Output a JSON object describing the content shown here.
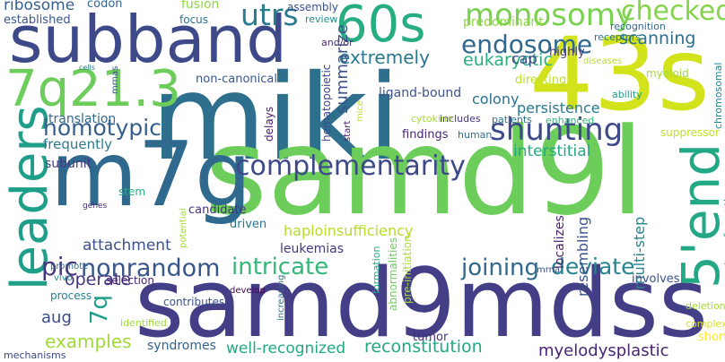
{
  "words": [
    {
      "text": "miki",
      "color": "#2e6f8e",
      "vertical": false
    },
    {
      "text": "samd9l",
      "color": "#6ccd5a",
      "vertical": false
    },
    {
      "text": "samd9mdss",
      "color": "#433e85",
      "vertical": false
    },
    {
      "text": "43s",
      "color": "#d2e21b",
      "vertical": false
    },
    {
      "text": "subband",
      "color": "#3e4989",
      "vertical": false
    },
    {
      "text": "m7g",
      "color": "#30698e",
      "vertical": false
    },
    {
      "text": "7q21.3",
      "color": "#6ccd5a",
      "vertical": false
    },
    {
      "text": "60s",
      "color": "#26ad81",
      "vertical": false
    },
    {
      "text": "leaders",
      "color": "#1f9e89",
      "vertical": true
    },
    {
      "text": "5'end",
      "color": "#22a884",
      "vertical": true
    },
    {
      "text": "complementarity",
      "color": "#3e4989",
      "vertical": false
    },
    {
      "text": "shunting",
      "color": "#3e4989",
      "vertical": false
    },
    {
      "text": "monosomy",
      "color": "#7ad151",
      "vertical": false
    },
    {
      "text": "endosome",
      "color": "#31688e",
      "vertical": false
    },
    {
      "text": "checked",
      "color": "#84d44b",
      "vertical": false
    },
    {
      "text": "homotypic",
      "color": "#355f8d",
      "vertical": false
    },
    {
      "text": "nonrandom",
      "color": "#39568c",
      "vertical": false
    },
    {
      "text": "pic",
      "color": "#46337e",
      "vertical": false
    },
    {
      "text": "utrs",
      "color": "#297b8e",
      "vertical": false
    },
    {
      "text": "intricate",
      "color": "#35b779",
      "vertical": false
    },
    {
      "text": "deviate",
      "color": "#25848e",
      "vertical": false
    },
    {
      "text": "joining",
      "color": "#31688e",
      "vertical": false
    },
    {
      "text": "eukaryotic",
      "color": "#29af7f",
      "vertical": false
    },
    {
      "text": "extremely",
      "color": "#2a788e",
      "vertical": false
    },
    {
      "text": "scanning",
      "color": "#2d708e",
      "vertical": false
    },
    {
      "text": "cap",
      "color": "#3e4989",
      "vertical": false
    },
    {
      "text": "aug",
      "color": "#3e4989",
      "vertical": false
    },
    {
      "text": "7q",
      "color": "#1f9e89",
      "vertical": true
    },
    {
      "text": "examples",
      "color": "#9fda3a",
      "vertical": false
    },
    {
      "text": "operate",
      "color": "#46337e",
      "vertical": false
    },
    {
      "text": "attachment",
      "color": "#3b528b",
      "vertical": false
    },
    {
      "text": "well-recognized",
      "color": "#22a884",
      "vertical": false
    },
    {
      "text": "reconstitution",
      "color": "#22a884",
      "vertical": false
    },
    {
      "text": "myelodysplastic",
      "color": "#482475",
      "vertical": false
    },
    {
      "text": "resembling",
      "color": "#3b528b",
      "vertical": true
    },
    {
      "text": "multi-step",
      "color": "#25848e",
      "vertical": true
    },
    {
      "text": "summarize",
      "color": "#3b528b",
      "vertical": true
    },
    {
      "text": "interstitial",
      "color": "#22a884",
      "vertical": false
    },
    {
      "text": "persistence",
      "color": "#2a788e",
      "vertical": false
    },
    {
      "text": "colony",
      "color": "#2d708e",
      "vertical": false
    },
    {
      "text": "ligand-bound",
      "color": "#3b528b",
      "vertical": false
    },
    {
      "text": "non-canonical",
      "color": "#39568c",
      "vertical": false
    },
    {
      "text": "haploinsufficiency",
      "color": "#b5de2b",
      "vertical": false
    },
    {
      "text": "leukemias",
      "color": "#453781",
      "vertical": false
    },
    {
      "text": "ribosome",
      "color": "#355f8d",
      "vertical": false
    },
    {
      "text": "established",
      "color": "#39568c",
      "vertical": false
    },
    {
      "text": "fusion",
      "color": "#8fd744",
      "vertical": false
    },
    {
      "text": "focus",
      "color": "#2a788e",
      "vertical": false
    },
    {
      "text": "codon",
      "color": "#31688e",
      "vertical": false
    },
    {
      "text": "assembly",
      "color": "#3b528b",
      "vertical": false
    },
    {
      "text": "predominant",
      "color": "#8fd744",
      "vertical": false
    },
    {
      "text": "review",
      "color": "#21918c",
      "vertical": false
    },
    {
      "text": "and/or",
      "color": "#472c7a",
      "vertical": false
    },
    {
      "text": "recognition",
      "color": "#31688e",
      "vertical": false
    },
    {
      "text": "receptors",
      "color": "#2a788e",
      "vertical": false
    },
    {
      "text": "highly",
      "color": "#46337e",
      "vertical": false
    },
    {
      "text": "myeloid",
      "color": "#a0da39",
      "vertical": false
    },
    {
      "text": "diseases",
      "color": "#b8de29",
      "vertical": false
    },
    {
      "text": "chromosomal",
      "color": "#26828e",
      "vertical": true
    },
    {
      "text": "ability",
      "color": "#1f9e89",
      "vertical": false
    },
    {
      "text": "directing",
      "color": "#bddf26",
      "vertical": false
    },
    {
      "text": "enhanced",
      "color": "#35b779",
      "vertical": false
    },
    {
      "text": "patients",
      "color": "#2c728e",
      "vertical": false
    },
    {
      "text": "includes",
      "color": "#46337e",
      "vertical": false
    },
    {
      "text": "cytokine",
      "color": "#a5db36",
      "vertical": false
    },
    {
      "text": "findings",
      "color": "#482878",
      "vertical": false
    },
    {
      "text": "human",
      "color": "#2d708e",
      "vertical": false
    },
    {
      "text": "suppressor",
      "color": "#c2df23",
      "vertical": false
    },
    {
      "text": "transformation",
      "color": "#20a386",
      "vertical": true
    },
    {
      "text": "hematopoietic",
      "color": "#3e4989",
      "vertical": true
    },
    {
      "text": "delays",
      "color": "#48186a",
      "vertical": true
    },
    {
      "text": "start",
      "color": "#481b6d",
      "vertical": true
    },
    {
      "text": "mice",
      "color": "#bddf26",
      "vertical": true
    },
    {
      "text": "mrnas",
      "color": "#39568c",
      "vertical": true
    },
    {
      "text": "cells",
      "color": "#2a788e",
      "vertical": false
    },
    {
      "text": "translation",
      "color": "#31688e",
      "vertical": false
    },
    {
      "text": "frequently",
      "color": "#2a788e",
      "vertical": false
    },
    {
      "text": "subunit",
      "color": "#443a83",
      "vertical": false
    },
    {
      "text": "stem",
      "color": "#27ad81",
      "vertical": false
    },
    {
      "text": "genes",
      "color": "#472d7b",
      "vertical": false
    },
    {
      "text": "candidate",
      "color": "#46337e",
      "vertical": false
    },
    {
      "text": "driven",
      "color": "#2c728e",
      "vertical": false
    },
    {
      "text": "potential",
      "color": "#9fda3a",
      "vertical": true
    },
    {
      "text": "promote",
      "color": "#2d708e",
      "vertical": false
    },
    {
      "text": "vivo",
      "color": "#21918c",
      "vertical": false
    },
    {
      "text": "selection",
      "color": "#482475",
      "vertical": false
    },
    {
      "text": "develop",
      "color": "#440154",
      "vertical": false
    },
    {
      "text": "process",
      "color": "#26828e",
      "vertical": false
    },
    {
      "text": "contributes",
      "color": "#3b528b",
      "vertical": false
    },
    {
      "text": "identified",
      "color": "#9fda3a",
      "vertical": false
    },
    {
      "text": "increasing",
      "color": "#2d708e",
      "vertical": true
    },
    {
      "text": "syndromes",
      "color": "#33638d",
      "vertical": false
    },
    {
      "text": "mechanisms",
      "color": "#3e4989",
      "vertical": false
    },
    {
      "text": "tumor",
      "color": "#472f7d",
      "vertical": false
    },
    {
      "text": "abnormalities",
      "color": "#6ccd5a",
      "vertical": true
    },
    {
      "text": "formation",
      "color": "#22a884",
      "vertical": true
    },
    {
      "text": "pre-initiation",
      "color": "#a8db34",
      "vertical": true
    },
    {
      "text": "mrna",
      "color": "#3b528b",
      "vertical": false
    },
    {
      "text": "localizes",
      "color": "#481f70",
      "vertical": true
    },
    {
      "text": "involves",
      "color": "#3b528b",
      "vertical": false
    },
    {
      "text": "deletion",
      "color": "#a5db36",
      "vertical": false
    },
    {
      "text": "complex",
      "color": "#d8e219",
      "vertical": false
    },
    {
      "text": "short",
      "color": "#fde725",
      "vertical": false
    }
  ]
}
